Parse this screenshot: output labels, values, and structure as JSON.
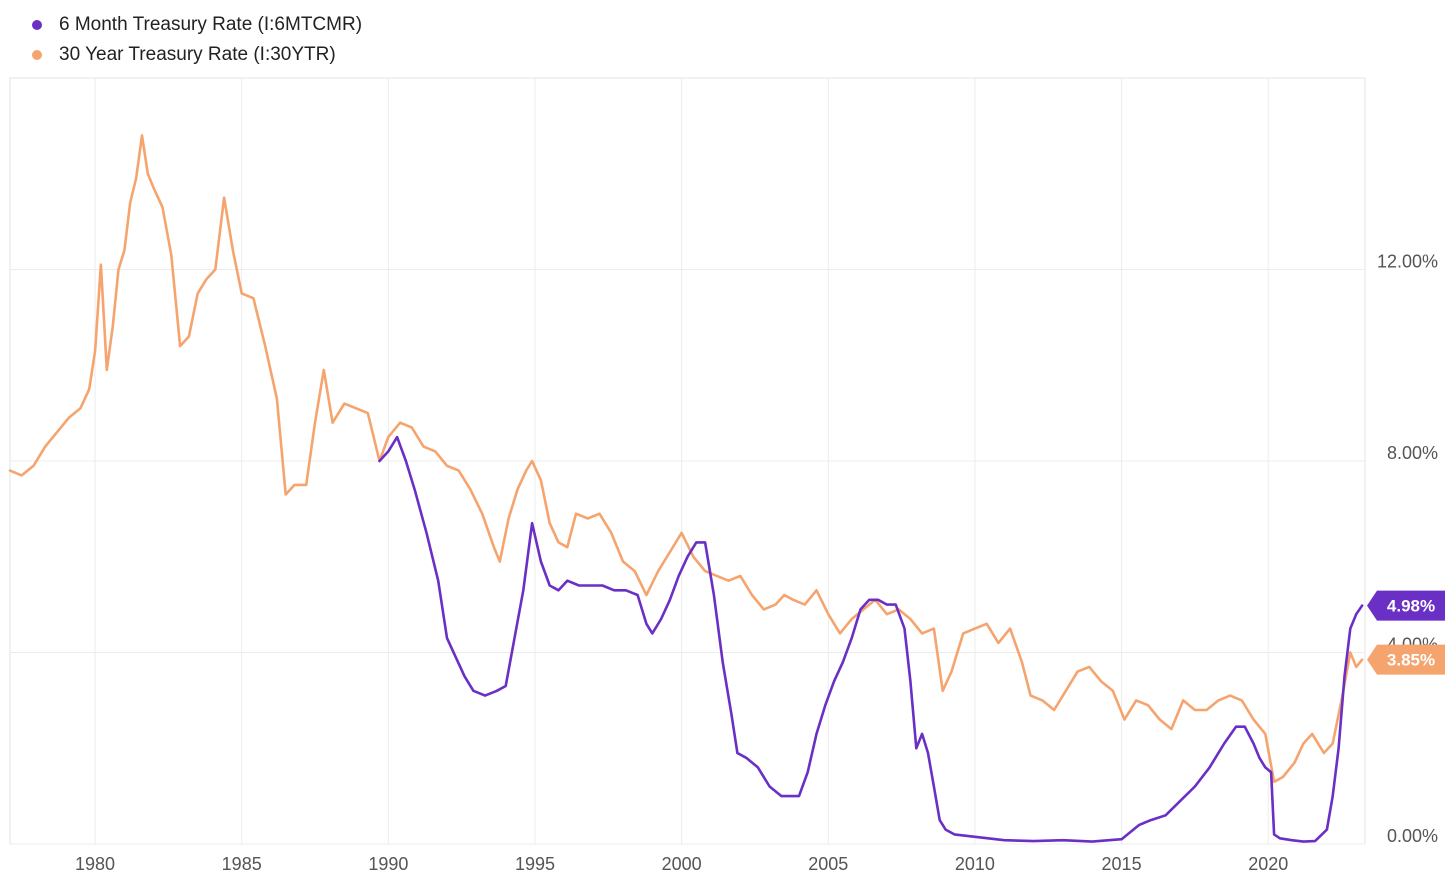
{
  "legend": {
    "items": [
      {
        "label": "6 Month Treasury Rate (I:6MTCMR)",
        "color": "#6a2fc4"
      },
      {
        "label": "30 Year Treasury Rate (I:30YTR)",
        "color": "#f5a46e"
      }
    ]
  },
  "chart_data": {
    "type": "line",
    "title": "",
    "xlabel": "",
    "ylabel": "",
    "xlim": [
      1977.1,
      2023.3
    ],
    "ylim": [
      0,
      16.0
    ],
    "x_ticks": [
      1980,
      1985,
      1990,
      1995,
      2000,
      2005,
      2010,
      2015,
      2020
    ],
    "x_tick_labels": [
      "1980",
      "1985",
      "1990",
      "1995",
      "2000",
      "2005",
      "2010",
      "2015",
      "2020"
    ],
    "y_ticks": [
      0,
      4,
      8,
      12
    ],
    "y_tick_labels": [
      "0.00%",
      "4.00%",
      "8.00%",
      "12.00%"
    ],
    "grid": true,
    "legend_position": "top-left",
    "series": [
      {
        "name": "6 Month Treasury Rate (I:6MTCMR)",
        "color": "#6a2fc4",
        "end_label": "4.98%",
        "x": [
          1989.7,
          1990.0,
          1990.3,
          1990.6,
          1990.9,
          1991.3,
          1991.7,
          1992.0,
          1992.3,
          1992.6,
          1992.9,
          1993.3,
          1993.7,
          1994.0,
          1994.3,
          1994.6,
          1994.9,
          1995.2,
          1995.5,
          1995.8,
          1996.1,
          1996.5,
          1996.9,
          1997.3,
          1997.7,
          1998.1,
          1998.5,
          1998.8,
          1999.0,
          1999.3,
          1999.6,
          1999.9,
          2000.2,
          2000.5,
          2000.8,
          2001.1,
          2001.4,
          2001.7,
          2001.9,
          2002.2,
          2002.6,
          2003.0,
          2003.4,
          2003.7,
          2004.0,
          2004.3,
          2004.6,
          2004.9,
          2005.2,
          2005.5,
          2005.8,
          2006.1,
          2006.4,
          2006.7,
          2007.0,
          2007.3,
          2007.6,
          2007.8,
          2008.0,
          2008.2,
          2008.4,
          2008.6,
          2008.8,
          2009.0,
          2009.3,
          2010.0,
          2011.0,
          2012.0,
          2013.0,
          2014.0,
          2015.0,
          2015.6,
          2016.0,
          2016.5,
          2017.0,
          2017.5,
          2018.0,
          2018.5,
          2018.9,
          2019.2,
          2019.5,
          2019.7,
          2019.9,
          2020.1,
          2020.2,
          2020.4,
          2020.8,
          2021.2,
          2021.6,
          2022.0,
          2022.2,
          2022.4,
          2022.6,
          2022.8,
          2023.0,
          2023.2
        ],
        "values": [
          8.0,
          8.2,
          8.5,
          8.0,
          7.4,
          6.5,
          5.5,
          4.3,
          3.9,
          3.5,
          3.2,
          3.1,
          3.2,
          3.3,
          4.3,
          5.3,
          6.7,
          5.9,
          5.4,
          5.3,
          5.5,
          5.4,
          5.4,
          5.4,
          5.3,
          5.3,
          5.2,
          4.6,
          4.4,
          4.7,
          5.1,
          5.6,
          6.0,
          6.3,
          6.3,
          5.2,
          3.8,
          2.7,
          1.9,
          1.8,
          1.6,
          1.2,
          1.0,
          1.0,
          1.0,
          1.5,
          2.3,
          2.9,
          3.4,
          3.8,
          4.3,
          4.9,
          5.1,
          5.1,
          5.0,
          5.0,
          4.5,
          3.4,
          2.0,
          2.3,
          1.9,
          1.2,
          0.5,
          0.3,
          0.2,
          0.15,
          0.08,
          0.06,
          0.08,
          0.05,
          0.1,
          0.4,
          0.5,
          0.6,
          0.9,
          1.2,
          1.6,
          2.1,
          2.45,
          2.45,
          2.1,
          1.8,
          1.6,
          1.5,
          0.2,
          0.12,
          0.08,
          0.05,
          0.06,
          0.3,
          1.0,
          2.0,
          3.5,
          4.5,
          4.8,
          4.98
        ]
      },
      {
        "name": "30 Year Treasury Rate (I:30YTR)",
        "color": "#f5a46e",
        "end_label": "3.85%",
        "x": [
          1977.1,
          1977.5,
          1977.9,
          1978.3,
          1978.7,
          1979.1,
          1979.5,
          1979.8,
          1980.0,
          1980.2,
          1980.4,
          1980.6,
          1980.8,
          1981.0,
          1981.2,
          1981.4,
          1981.6,
          1981.8,
          1982.0,
          1982.3,
          1982.6,
          1982.9,
          1983.2,
          1983.5,
          1983.8,
          1984.1,
          1984.4,
          1984.7,
          1985.0,
          1985.4,
          1985.8,
          1986.2,
          1986.5,
          1986.8,
          1987.2,
          1987.5,
          1987.8,
          1988.1,
          1988.5,
          1988.9,
          1989.3,
          1989.7,
          1990.0,
          1990.4,
          1990.8,
          1991.2,
          1991.6,
          1992.0,
          1992.4,
          1992.8,
          1993.2,
          1993.6,
          1993.8,
          1994.1,
          1994.4,
          1994.7,
          1994.9,
          1995.2,
          1995.5,
          1995.8,
          1996.1,
          1996.4,
          1996.8,
          1997.2,
          1997.6,
          1998.0,
          1998.4,
          1998.8,
          1999.2,
          1999.6,
          2000.0,
          2000.4,
          2000.8,
          2001.2,
          2001.6,
          2002.0,
          2002.4,
          2002.8,
          2003.2,
          2003.5,
          2003.8,
          2004.2,
          2004.6,
          2005.0,
          2005.4,
          2005.8,
          2006.2,
          2006.6,
          2007.0,
          2007.4,
          2007.8,
          2008.2,
          2008.6,
          2008.9,
          2009.2,
          2009.6,
          2010.0,
          2010.4,
          2010.8,
          2011.2,
          2011.6,
          2011.9,
          2012.3,
          2012.7,
          2013.1,
          2013.5,
          2013.9,
          2014.3,
          2014.7,
          2015.1,
          2015.5,
          2015.9,
          2016.3,
          2016.7,
          2017.1,
          2017.5,
          2017.9,
          2018.3,
          2018.7,
          2019.1,
          2019.5,
          2019.9,
          2020.2,
          2020.5,
          2020.9,
          2021.2,
          2021.5,
          2021.9,
          2022.2,
          2022.5,
          2022.8,
          2023.0,
          2023.2
        ],
        "values": [
          7.8,
          7.7,
          7.9,
          8.3,
          8.6,
          8.9,
          9.1,
          9.5,
          10.3,
          12.1,
          9.9,
          10.8,
          12.0,
          12.4,
          13.4,
          13.9,
          14.8,
          14.0,
          13.7,
          13.3,
          12.3,
          10.4,
          10.6,
          11.5,
          11.8,
          12.0,
          13.5,
          12.4,
          11.5,
          11.4,
          10.4,
          9.3,
          7.3,
          7.5,
          7.5,
          8.8,
          9.9,
          8.8,
          9.2,
          9.1,
          9.0,
          8.0,
          8.5,
          8.8,
          8.7,
          8.3,
          8.2,
          7.9,
          7.8,
          7.4,
          6.9,
          6.2,
          5.9,
          6.8,
          7.4,
          7.8,
          8.0,
          7.6,
          6.7,
          6.3,
          6.2,
          6.9,
          6.8,
          6.9,
          6.5,
          5.9,
          5.7,
          5.2,
          5.7,
          6.1,
          6.5,
          6.0,
          5.7,
          5.6,
          5.5,
          5.6,
          5.2,
          4.9,
          5.0,
          5.2,
          5.1,
          5.0,
          5.3,
          4.8,
          4.4,
          4.7,
          4.9,
          5.1,
          4.8,
          4.9,
          4.7,
          4.4,
          4.5,
          3.2,
          3.6,
          4.4,
          4.5,
          4.6,
          4.2,
          4.5,
          3.8,
          3.1,
          3.0,
          2.8,
          3.2,
          3.6,
          3.7,
          3.4,
          3.2,
          2.6,
          3.0,
          2.9,
          2.6,
          2.4,
          3.0,
          2.8,
          2.8,
          3.0,
          3.1,
          3.0,
          2.6,
          2.3,
          1.3,
          1.4,
          1.7,
          2.1,
          2.3,
          1.9,
          2.1,
          3.0,
          4.0,
          3.7,
          3.85
        ]
      }
    ]
  }
}
